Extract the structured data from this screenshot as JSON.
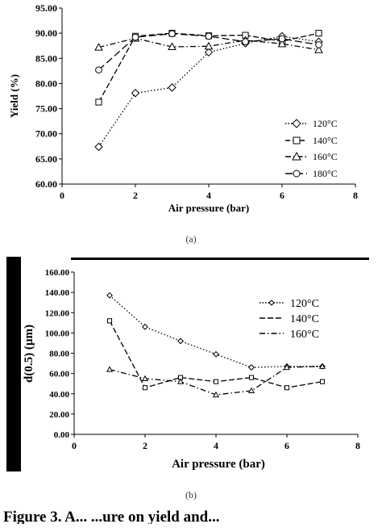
{
  "chart_data": [
    {
      "type": "line",
      "ylabel": "Yield (%)",
      "xlabel": "Air pressure (bar)",
      "xlim": [
        0,
        8
      ],
      "ylim": [
        60,
        95
      ],
      "x_ticks": [
        "0",
        "2",
        "4",
        "6",
        "8"
      ],
      "y_ticks": [
        "60.00",
        "65.00",
        "70.00",
        "75.00",
        "80.00",
        "85.00",
        "90.00",
        "95.00"
      ],
      "grid": false,
      "legend_position": "bottom-right",
      "caption": "(a)",
      "series": [
        {
          "name": "120°C",
          "marker": "diamond",
          "dash": "dotted",
          "x": [
            1,
            2,
            3,
            4,
            5,
            6,
            7
          ],
          "y": [
            67.4,
            78.1,
            79.2,
            86.2,
            88.0,
            89.4,
            88.3
          ]
        },
        {
          "name": "140°C",
          "marker": "square",
          "dash": "dashed",
          "x": [
            1,
            2,
            3,
            4,
            5,
            6,
            7
          ],
          "y": [
            76.3,
            89.4,
            90.0,
            89.5,
            89.6,
            88.4,
            90.0
          ]
        },
        {
          "name": "160°C",
          "marker": "triangle",
          "dash": "dashdot",
          "x": [
            1,
            2,
            3,
            4,
            5,
            6,
            7
          ],
          "y": [
            87.2,
            89.0,
            87.3,
            87.4,
            88.6,
            87.9,
            86.7
          ]
        },
        {
          "name": "180°C",
          "marker": "circle",
          "dash": "longdash",
          "x": [
            1,
            2,
            3,
            4,
            5,
            6,
            7
          ],
          "y": [
            82.7,
            89.2,
            89.9,
            89.4,
            88.3,
            88.9,
            87.7
          ]
        }
      ]
    },
    {
      "type": "line",
      "ylabel": "d(0.5) (µm)",
      "xlabel": "Air pressure (bar)",
      "xlim": [
        0,
        8
      ],
      "ylim": [
        0,
        160
      ],
      "x_ticks": [
        "0",
        "2",
        "4",
        "6",
        "8"
      ],
      "y_ticks": [
        "0.00",
        "20.00",
        "40.00",
        "60.00",
        "80.00",
        "100.00",
        "120.00",
        "140.00",
        "160.00"
      ],
      "grid": false,
      "legend_position": "top-right",
      "caption": "(b)",
      "series": [
        {
          "name": "120°C",
          "marker": "diamond",
          "dash": "dotted",
          "x": [
            1,
            2,
            3,
            4,
            5,
            6,
            7
          ],
          "y": [
            137,
            106,
            92,
            79,
            66,
            67,
            67
          ]
        },
        {
          "name": "140°C",
          "marker": "square",
          "dash": "dashed",
          "x": [
            1,
            2,
            3,
            4,
            5,
            6,
            7
          ],
          "y": [
            112,
            46,
            56,
            52,
            56,
            46,
            52
          ]
        },
        {
          "name": "160°C",
          "marker": "triangle",
          "dash": "dashdot",
          "x": [
            1,
            2,
            3,
            4,
            5,
            6,
            7
          ],
          "y": [
            64,
            55,
            52,
            39,
            43,
            66,
            67
          ]
        }
      ]
    }
  ],
  "footer_text": "Figure 3. A... ...ure on yield and...",
  "colors": {
    "ink": "#000000",
    "marker_fill": "#ffffff",
    "bar": "#000000"
  }
}
